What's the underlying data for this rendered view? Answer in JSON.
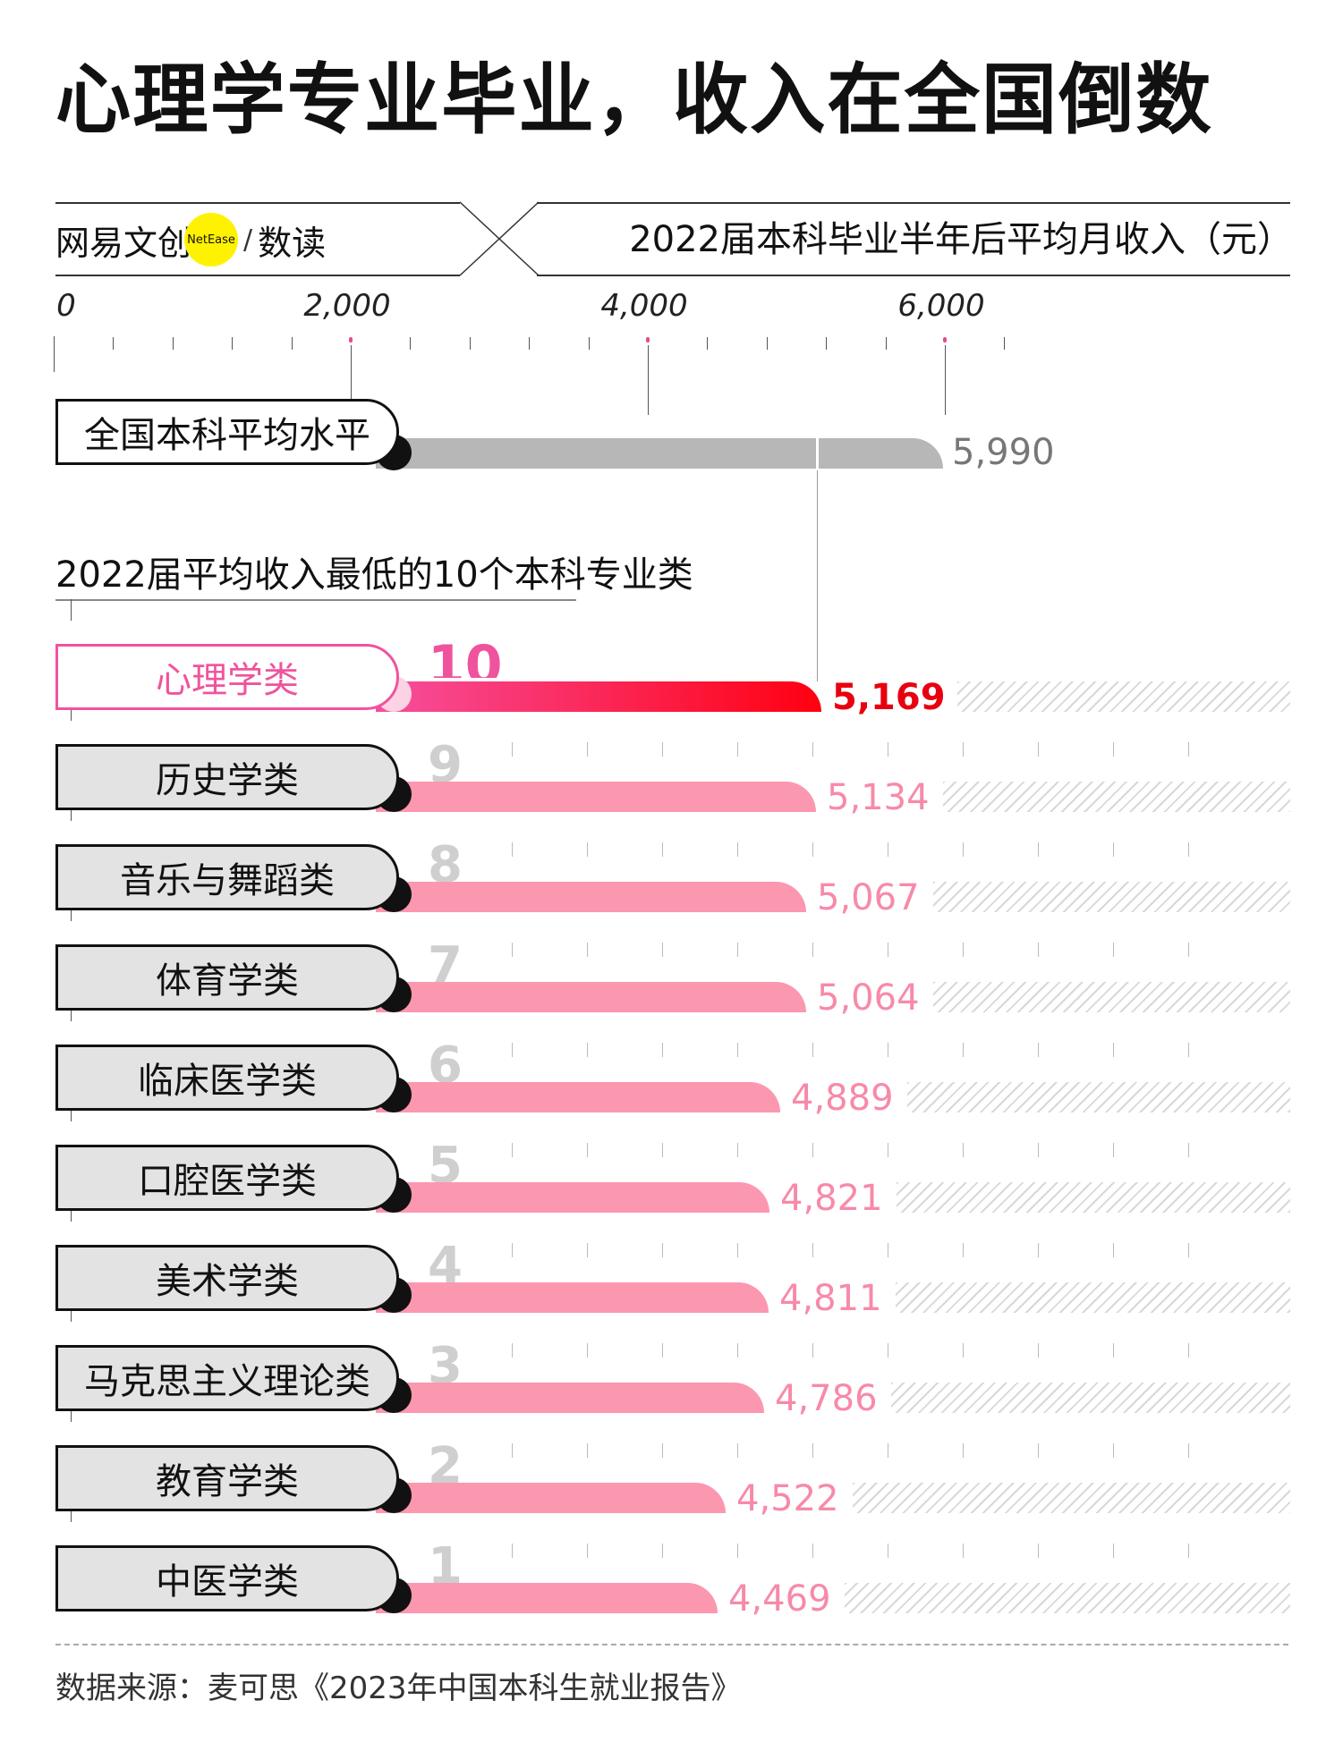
{
  "title": "心理学专业毕业，收入在全国倒数",
  "header": {
    "brand_cn": "网易文创",
    "brand_en": "NetEase",
    "brand_slash": "/",
    "brand_section": "数读",
    "chart_title": "2022届本科毕业半年后平均月收入（元）"
  },
  "axis": {
    "ticks": [
      "0",
      "2,000",
      "4,000",
      "6,000"
    ]
  },
  "national": {
    "label": "全国本科平均水平",
    "value_label": "5,990"
  },
  "subheading": "2022届平均收入最低的10个本科专业类",
  "rows": [
    {
      "rank": "10",
      "label": "心理学类",
      "value_label": "5,169"
    },
    {
      "rank": "9",
      "label": "历史学类",
      "value_label": "5,134"
    },
    {
      "rank": "8",
      "label": "音乐与舞蹈类",
      "value_label": "5,067"
    },
    {
      "rank": "7",
      "label": "体育学类",
      "value_label": "5,064"
    },
    {
      "rank": "6",
      "label": "临床医学类",
      "value_label": "4,889"
    },
    {
      "rank": "5",
      "label": "口腔医学类",
      "value_label": "4,821"
    },
    {
      "rank": "4",
      "label": "美术学类",
      "value_label": "4,811"
    },
    {
      "rank": "3",
      "label": "马克思主义理论类",
      "value_label": "4,786"
    },
    {
      "rank": "2",
      "label": "教育学类",
      "value_label": "4,522"
    },
    {
      "rank": "1",
      "label": "中医学类",
      "value_label": "4,469"
    }
  ],
  "footer": {
    "source": "数据来源：麦可思《2023年中国本科生就业报告》"
  },
  "colors": {
    "highlight_gradient_start": "#f64f9f",
    "highlight_gradient_end": "#ff0010",
    "highlight_value": "#e8000f",
    "bar_pink": "#fc97b0",
    "value_pink": "#f78aa8",
    "national_bar": "#b7b7b7",
    "national_value": "#777777",
    "highlight_border": "#f0539d",
    "pill_fill": "#e3e3e3",
    "rank_gray": "#cfcfcf"
  },
  "chart_data": {
    "type": "bar",
    "orientation": "horizontal",
    "title": "心理学专业毕业，收入在全国倒数",
    "subtitle": "2022届本科毕业半年后平均月收入（元）",
    "xlabel": "平均月收入（元）",
    "ylabel": "",
    "xlim": [
      0,
      6400
    ],
    "x_ticks": [
      0,
      2000,
      4000,
      6000
    ],
    "grid": false,
    "reference": {
      "name": "全国本科平均水平",
      "value": 5990
    },
    "categories": [
      "心理学类",
      "历史学类",
      "音乐与舞蹈类",
      "体育学类",
      "临床医学类",
      "口腔医学类",
      "美术学类",
      "马克思主义理论类",
      "教育学类",
      "中医学类"
    ],
    "ranks": [
      10,
      9,
      8,
      7,
      6,
      5,
      4,
      3,
      2,
      1
    ],
    "values": [
      5169,
      5134,
      5067,
      5064,
      4889,
      4821,
      4811,
      4786,
      4522,
      4469
    ],
    "highlight": "心理学类",
    "section_label": "2022届平均收入最低的10个本科专业类",
    "source": "数据来源：麦可思《2023年中国本科生就业报告》"
  }
}
